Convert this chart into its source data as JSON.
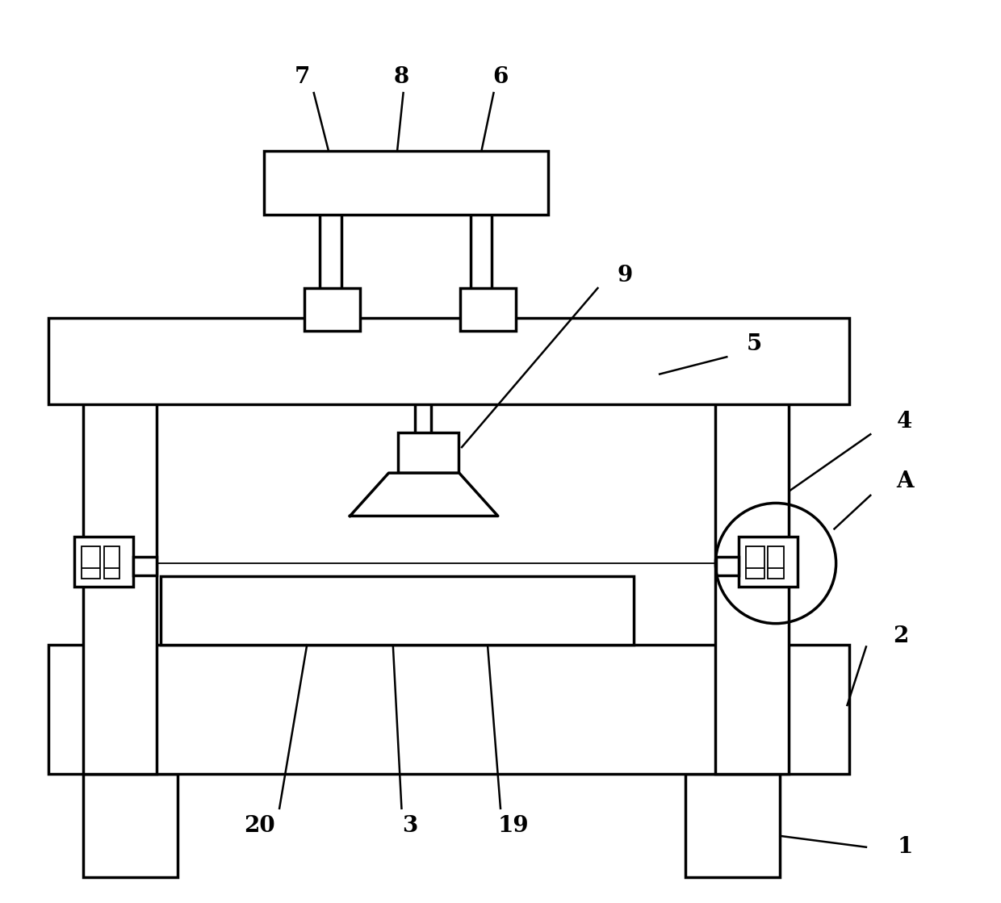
{
  "bg_color": "#ffffff",
  "lc": "#000000",
  "lw": 2.5,
  "lw_thin": 1.3,
  "lw_ann": 1.8,
  "label_fs": 20,
  "figsize": [
    12.4,
    11.19
  ],
  "dpi": 100,
  "xlim": [
    0,
    1.15
  ],
  "ylim": [
    0,
    1.05
  ]
}
